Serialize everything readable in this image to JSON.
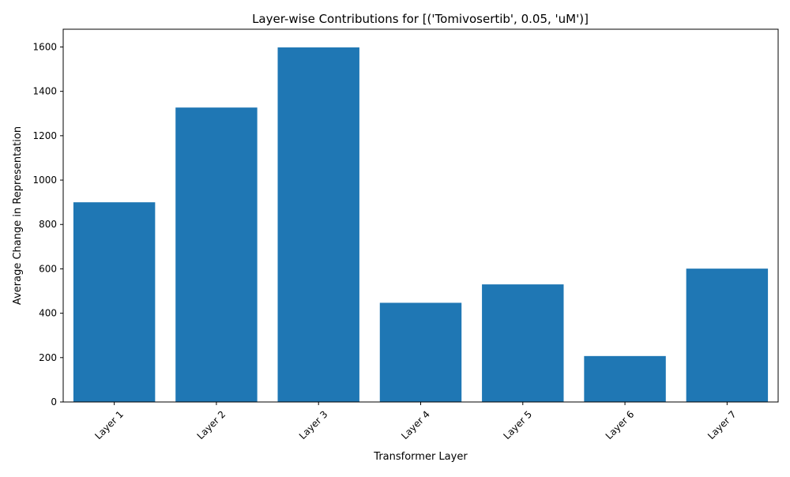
{
  "chart_data": {
    "type": "bar",
    "title": "Layer-wise Contributions for [('Tomivosertib', 0.05, 'uM')]",
    "xlabel": "Transformer Layer",
    "ylabel": "Average Change in Representation",
    "categories": [
      "Layer 1",
      "Layer 2",
      "Layer 3",
      "Layer 4",
      "Layer 5",
      "Layer 6",
      "Layer 7"
    ],
    "values": [
      900,
      1327,
      1598,
      447,
      530,
      207,
      601
    ],
    "ylim": [
      0,
      1680
    ],
    "yticks": [
      0,
      200,
      400,
      600,
      800,
      1000,
      1200,
      1400,
      1600
    ],
    "bar_color": "#1f77b4",
    "grid": false,
    "legend": "none",
    "xtick_rotation_deg": 45
  }
}
